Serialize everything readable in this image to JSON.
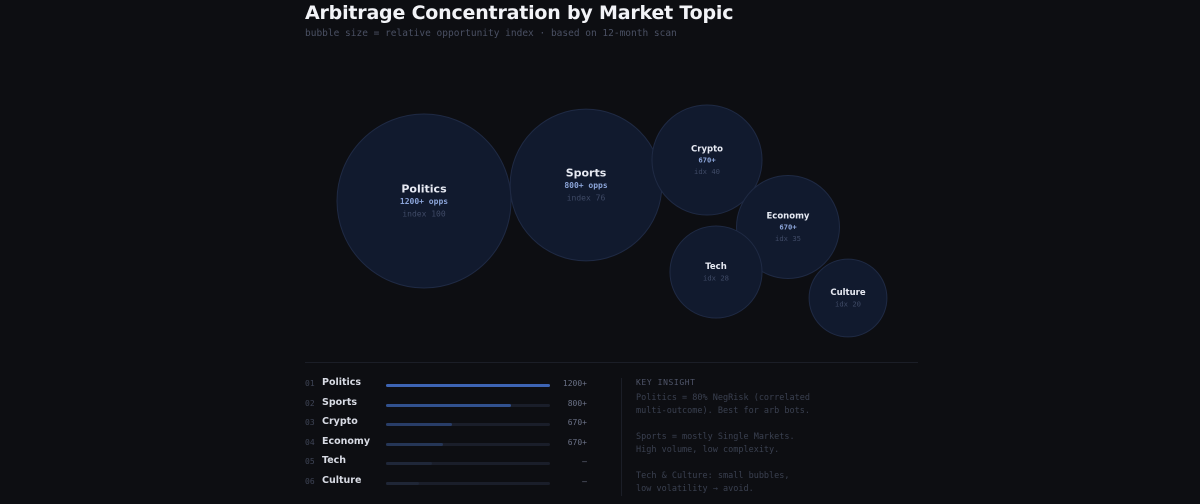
{
  "chart_data": {
    "type": "bubble",
    "title": "Arbitrage Concentration by Market Topic",
    "subtitle": "bubble size = relative opportunity index  ·  based on 12-month scan",
    "bubbles": [
      {
        "name": "Politics",
        "opps": "1200+ opps",
        "idx_label": "index 100",
        "index": 100
      },
      {
        "name": "Sports",
        "opps": "800+ opps",
        "idx_label": "index 76",
        "index": 76
      },
      {
        "name": "Crypto",
        "opps": "670+",
        "idx_label": "idx 40",
        "index": 40
      },
      {
        "name": "Economy",
        "opps": "670+",
        "idx_label": "idx 35",
        "index": 35
      },
      {
        "name": "Tech",
        "opps": "",
        "idx_label": "idx 28",
        "index": 28
      },
      {
        "name": "Culture",
        "opps": "",
        "idx_label": "idx 20",
        "index": 20
      }
    ]
  },
  "ranking": [
    {
      "num": "01",
      "name": "Politics",
      "value": "1200+",
      "fill": 1.0,
      "color": "#3d64b4"
    },
    {
      "num": "02",
      "name": "Sports",
      "value": "800+",
      "fill": 0.76,
      "color": "#31518f"
    },
    {
      "num": "03",
      "name": "Crypto",
      "value": "670+",
      "fill": 0.4,
      "color": "#283d68"
    },
    {
      "num": "04",
      "name": "Economy",
      "value": "670+",
      "fill": 0.35,
      "color": "#253657"
    },
    {
      "num": "05",
      "name": "Tech",
      "value": "—",
      "fill": 0.28,
      "color": "#1f2739"
    },
    {
      "num": "06",
      "name": "Culture",
      "value": "—",
      "fill": 0.2,
      "color": "#1f2636"
    }
  ],
  "insight": {
    "heading": "KEY INSIGHT",
    "lines": [
      "Politics = 80% NegRisk (correlated",
      "multi-outcome). Best for arb bots.",
      "",
      "Sports = mostly Single Markets.",
      "High volume, low complexity.",
      "",
      "Tech & Culture: small bubbles,",
      "low volatility → avoid."
    ]
  }
}
